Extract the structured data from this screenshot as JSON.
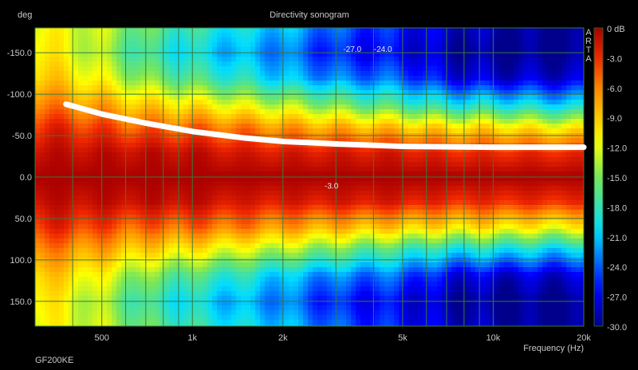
{
  "chart_data": {
    "type": "heatmap",
    "title": "Directivity sonogram",
    "xlabel": "Frequency (Hz)",
    "ylabel": "deg",
    "xscale": "log",
    "xlim": [
      300,
      20000
    ],
    "ylim": [
      -180,
      180
    ],
    "x_ticks": [
      {
        "v": 500,
        "label": "500"
      },
      {
        "v": 1000,
        "label": "1k"
      },
      {
        "v": 2000,
        "label": "2k"
      },
      {
        "v": 5000,
        "label": "5k"
      },
      {
        "v": 10000,
        "label": "10k"
      },
      {
        "v": 20000,
        "label": "20k"
      }
    ],
    "y_ticks": [
      {
        "v": -150,
        "label": "-150.0"
      },
      {
        "v": -100,
        "label": "-100.0"
      },
      {
        "v": -50,
        "label": "-50.0"
      },
      {
        "v": 0,
        "label": "0.0"
      },
      {
        "v": 50,
        "label": "50.0"
      },
      {
        "v": 100,
        "label": "100.0"
      },
      {
        "v": 150,
        "label": "150.0"
      }
    ],
    "colorbar": {
      "range": [
        -30,
        0
      ],
      "ticks": [
        "0 dB",
        "-3.0",
        "-6.0",
        "-9.0",
        "-12.0",
        "-15.0",
        "-18.0",
        "-21.0",
        "-24.0",
        "-27.0",
        "-30.0"
      ]
    },
    "grid": true,
    "symmetric_angles": true,
    "angles": [
      0,
      30,
      60,
      90,
      120,
      150,
      180
    ],
    "frequencies": [
      300,
      400,
      500,
      700,
      1000,
      1500,
      2000,
      3000,
      5000,
      7000,
      10000,
      15000,
      20000
    ],
    "values_db": [
      [
        0,
        -1,
        -3,
        -6,
        -9,
        -10,
        -11
      ],
      [
        0,
        -1,
        -3,
        -7,
        -10,
        -12,
        -12
      ],
      [
        0,
        -1,
        -4,
        -8,
        -12,
        -14,
        -13
      ],
      [
        0,
        -1,
        -5,
        -10,
        -15,
        -18,
        -16
      ],
      [
        0,
        -1,
        -5,
        -11,
        -17,
        -20,
        -18
      ],
      [
        0,
        -2,
        -6,
        -13,
        -19,
        -22,
        -20
      ],
      [
        0,
        -2,
        -7,
        -14,
        -21,
        -23,
        -21
      ],
      [
        0,
        -2,
        -8,
        -16,
        -23,
        -26,
        -24
      ],
      [
        0,
        -2,
        -9,
        -18,
        -24,
        -27,
        -26
      ],
      [
        0,
        -3,
        -10,
        -20,
        -27,
        -29,
        -28
      ],
      [
        0,
        -3,
        -10,
        -20,
        -28,
        -30,
        -29
      ],
      [
        0,
        -3,
        -11,
        -21,
        -28,
        -30,
        -30
      ],
      [
        0,
        -3,
        -11,
        -21,
        -28,
        -30,
        -30
      ]
    ],
    "contour_labels": [
      {
        "freq": 2900,
        "deg": 10,
        "label": "-3.0"
      },
      {
        "freq": 3400,
        "deg": -155,
        "label": "-27.0"
      },
      {
        "freq": 4300,
        "deg": -155,
        "label": "-24.0"
      }
    ],
    "overlay_line": {
      "color": "#ffffff",
      "points": [
        [
          380,
          -88
        ],
        [
          500,
          -76
        ],
        [
          700,
          -65
        ],
        [
          1000,
          -55
        ],
        [
          1500,
          -47
        ],
        [
          2000,
          -43
        ],
        [
          3000,
          -40
        ],
        [
          5000,
          -37
        ],
        [
          10000,
          -36
        ],
        [
          20000,
          -36
        ]
      ]
    },
    "watermark": "ARTA",
    "footer_label": "GF200KE"
  }
}
